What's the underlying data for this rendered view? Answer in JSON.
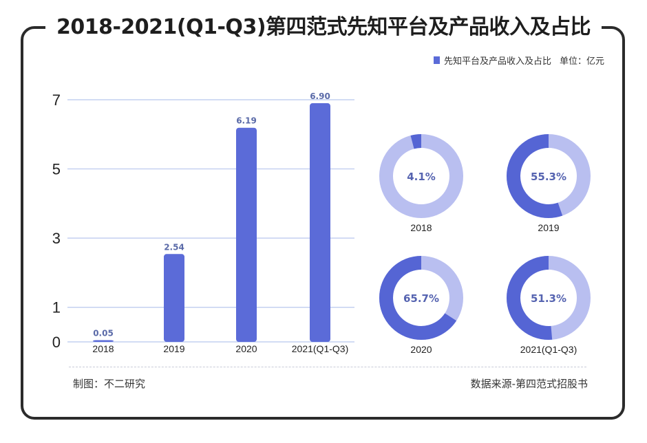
{
  "title": "2018-2021(Q1-Q3)第四范式先知平台及产品收入及占比",
  "legend": {
    "series_name": "先知平台及产品收入及占比",
    "unit": "单位：亿元"
  },
  "footer": {
    "credit": "制图：不二研究",
    "source": "数据来源-第四范式招股书"
  },
  "colors": {
    "bar": "#5b6bd8",
    "donut_track": "#b9bff0",
    "donut_fill": "#5565d4",
    "grid": "#b8c6ee"
  },
  "chart_data": [
    {
      "type": "bar",
      "categories": [
        "2018",
        "2019",
        "2020",
        "2021(Q1-Q3)"
      ],
      "values": [
        0.05,
        2.54,
        6.19,
        6.9
      ],
      "value_labels": [
        "0.05",
        "2.54",
        "6.19",
        "6.90"
      ],
      "ylim": [
        0,
        7
      ],
      "yticks": [
        "0",
        "1",
        "3",
        "5",
        "7"
      ],
      "grid": true
    },
    {
      "type": "pie",
      "style": "donut",
      "categories": [
        "2018",
        "2019",
        "2020",
        "2021(Q1-Q3)"
      ],
      "values": [
        4.1,
        55.3,
        65.7,
        51.3
      ],
      "value_labels": [
        "4.1%",
        "55.3%",
        "65.7%",
        "51.3%"
      ]
    }
  ]
}
